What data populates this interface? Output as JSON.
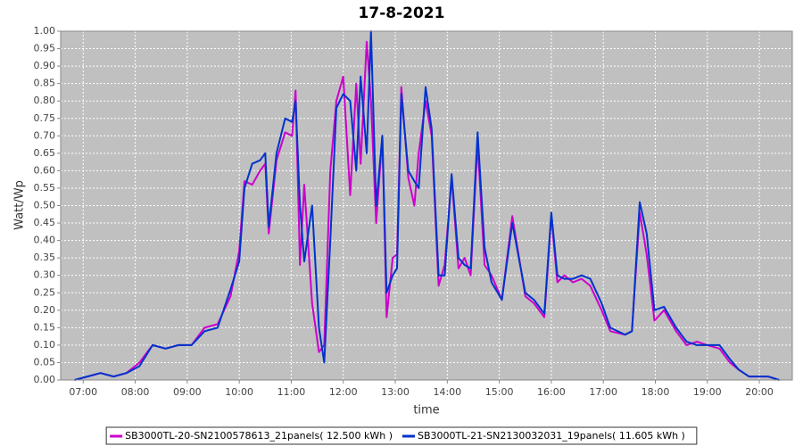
{
  "chart_data": {
    "type": "line",
    "title": "17-8-2021",
    "x_label": "time",
    "y_label": "Watt/Wp",
    "x": [
      "06:50",
      "07:05",
      "07:20",
      "07:35",
      "07:50",
      "08:05",
      "08:20",
      "08:35",
      "08:50",
      "09:05",
      "09:20",
      "09:35",
      "09:50",
      "10:00",
      "10:06",
      "10:15",
      "10:24",
      "10:30",
      "10:34",
      "10:43",
      "10:53",
      "11:01",
      "11:05",
      "11:10",
      "11:15",
      "11:24",
      "11:32",
      "11:38",
      "11:45",
      "11:52",
      "12:00",
      "12:08",
      "12:15",
      "12:20",
      "12:27",
      "12:32",
      "12:38",
      "12:45",
      "12:50",
      "12:57",
      "13:02",
      "13:07",
      "13:15",
      "13:22",
      "13:27",
      "13:35",
      "13:42",
      "13:50",
      "13:57",
      "14:05",
      "14:13",
      "14:20",
      "14:27",
      "14:35",
      "14:43",
      "14:51",
      "15:03",
      "15:15",
      "15:30",
      "15:40",
      "15:52",
      "16:00",
      "16:07",
      "16:15",
      "16:25",
      "16:35",
      "16:45",
      "16:58",
      "17:08",
      "17:25",
      "17:33",
      "17:42",
      "17:50",
      "17:59",
      "18:10",
      "18:24",
      "18:36",
      "18:48",
      "19:00",
      "19:14",
      "19:26",
      "19:36",
      "19:48",
      "20:10",
      "20:23"
    ],
    "series": [
      {
        "name": "SB3000TL-20-SN2100578613_21panels( 12.500 kWh )",
        "color": "#cc00cc",
        "values": [
          0,
          0.01,
          0.02,
          0.01,
          0.02,
          0.05,
          0.1,
          0.09,
          0.1,
          0.1,
          0.15,
          0.16,
          0.24,
          0.37,
          0.57,
          0.56,
          0.6,
          0.62,
          0.42,
          0.63,
          0.71,
          0.7,
          0.83,
          0.33,
          0.56,
          0.22,
          0.08,
          0.1,
          0.6,
          0.8,
          0.87,
          0.53,
          0.85,
          0.62,
          0.97,
          0.8,
          0.45,
          0.7,
          0.18,
          0.35,
          0.36,
          0.84,
          0.58,
          0.5,
          0.65,
          0.8,
          0.7,
          0.27,
          0.33,
          0.58,
          0.32,
          0.35,
          0.3,
          0.68,
          0.33,
          0.3,
          0.23,
          0.47,
          0.24,
          0.22,
          0.18,
          0.47,
          0.28,
          0.3,
          0.28,
          0.29,
          0.27,
          0.2,
          0.14,
          0.13,
          0.14,
          0.48,
          0.36,
          0.17,
          0.2,
          0.14,
          0.1,
          0.11,
          0.1,
          0.09,
          0.05,
          0.03,
          0.01,
          0.01,
          0
        ]
      },
      {
        "name": "SB3000TL-21-SN2130032031_19panels( 11.605 kWh )",
        "color": "#0033cc",
        "values": [
          0,
          0.01,
          0.02,
          0.01,
          0.02,
          0.04,
          0.1,
          0.09,
          0.1,
          0.1,
          0.14,
          0.15,
          0.26,
          0.34,
          0.55,
          0.62,
          0.63,
          0.65,
          0.44,
          0.65,
          0.75,
          0.74,
          0.8,
          0.5,
          0.34,
          0.5,
          0.15,
          0.05,
          0.4,
          0.78,
          0.82,
          0.8,
          0.6,
          0.87,
          0.65,
          1.0,
          0.5,
          0.7,
          0.25,
          0.3,
          0.32,
          0.82,
          0.6,
          0.57,
          0.55,
          0.84,
          0.72,
          0.3,
          0.3,
          0.59,
          0.35,
          0.33,
          0.32,
          0.71,
          0.38,
          0.28,
          0.23,
          0.45,
          0.25,
          0.23,
          0.19,
          0.48,
          0.3,
          0.29,
          0.29,
          0.3,
          0.29,
          0.22,
          0.15,
          0.13,
          0.14,
          0.51,
          0.42,
          0.2,
          0.21,
          0.15,
          0.11,
          0.1,
          0.1,
          0.1,
          0.06,
          0.03,
          0.01,
          0.01,
          0
        ]
      }
    ],
    "xlim": [
      "06:34",
      "20:38"
    ],
    "xticks": [
      "07:00",
      "08:00",
      "09:00",
      "10:00",
      "11:00",
      "12:00",
      "13:00",
      "14:00",
      "15:00",
      "16:00",
      "17:00",
      "18:00",
      "19:00",
      "20:00"
    ],
    "ylim": [
      0,
      1
    ],
    "yticks": [
      {
        "value": 0,
        "label": "0.00"
      },
      {
        "value": 0.05,
        "label": "0.05"
      },
      {
        "value": 0.1,
        "label": "0.10"
      },
      {
        "value": 0.15,
        "label": "0.15"
      },
      {
        "value": 0.2,
        "label": "0.20"
      },
      {
        "value": 0.25,
        "label": "0.25"
      },
      {
        "value": 0.3,
        "label": "0.30"
      },
      {
        "value": 0.35,
        "label": "0.35"
      },
      {
        "value": 0.4,
        "label": "0.40"
      },
      {
        "value": 0.45,
        "label": "0.45"
      },
      {
        "value": 0.5,
        "label": "0.50"
      },
      {
        "value": 0.55,
        "label": "0.55"
      },
      {
        "value": 0.6,
        "label": "0.60"
      },
      {
        "value": 0.65,
        "label": "0.65"
      },
      {
        "value": 0.7,
        "label": "0.70"
      },
      {
        "value": 0.75,
        "label": "0.75"
      },
      {
        "value": 0.8,
        "label": "0.80"
      },
      {
        "value": 0.85,
        "label": "0.85"
      },
      {
        "value": 0.9,
        "label": "0.90"
      },
      {
        "value": 0.95,
        "label": "0.95"
      },
      {
        "value": 1,
        "label": "1.00"
      }
    ],
    "grid": true,
    "legend": "bottom"
  }
}
